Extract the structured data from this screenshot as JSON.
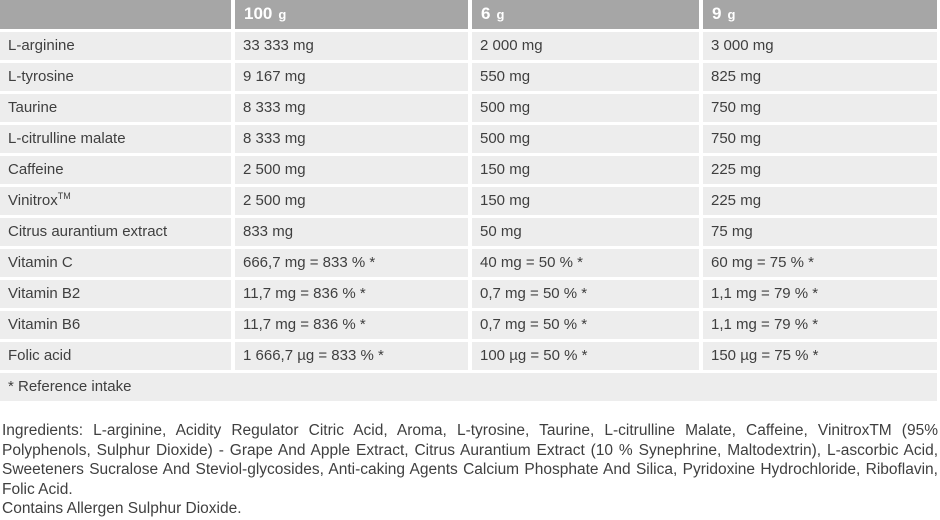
{
  "colors": {
    "header_bg": "#a6a6a6",
    "header_text": "#ffffff",
    "row_bg": "#ededed",
    "body_text": "#3f3f3f",
    "divider": "#ffffff"
  },
  "table": {
    "headers": [
      {
        "amount": "",
        "unit": ""
      },
      {
        "amount": "100",
        "unit": "g"
      },
      {
        "amount": "6",
        "unit": "g"
      },
      {
        "amount": "9",
        "unit": "g"
      }
    ],
    "rows": [
      {
        "name": "L-arginine",
        "sup": "",
        "per_100g": "33 333 mg",
        "per_6g": "2 000 mg",
        "per_9g": "3 000 mg"
      },
      {
        "name": "L-tyrosine",
        "sup": "",
        "per_100g": "9 167 mg",
        "per_6g": "550 mg",
        "per_9g": "825 mg"
      },
      {
        "name": "Taurine",
        "sup": "",
        "per_100g": "8 333 mg",
        "per_6g": "500 mg",
        "per_9g": "750 mg"
      },
      {
        "name": "L-citrulline malate",
        "sup": "",
        "per_100g": "8 333 mg",
        "per_6g": "500 mg",
        "per_9g": "750 mg"
      },
      {
        "name": "Caffeine",
        "sup": "",
        "per_100g": "2 500 mg",
        "per_6g": "150 mg",
        "per_9g": "225 mg"
      },
      {
        "name": "Vinitrox",
        "sup": "TM",
        "per_100g": "2 500 mg",
        "per_6g": "150 mg",
        "per_9g": "225 mg"
      },
      {
        "name": "Citrus aurantium extract",
        "sup": "",
        "per_100g": "833 mg",
        "per_6g": "50 mg",
        "per_9g": "75 mg"
      },
      {
        "name": "Vitamin C",
        "sup": "",
        "per_100g": "666,7 mg = 833 % *",
        "per_6g": "40 mg = 50 % *",
        "per_9g": "60 mg = 75 % *"
      },
      {
        "name": "Vitamin B2",
        "sup": "",
        "per_100g": "11,7 mg = 836 % *",
        "per_6g": "0,7 mg = 50 % *",
        "per_9g": "1,1 mg = 79 % *"
      },
      {
        "name": "Vitamin B6",
        "sup": "",
        "per_100g": "11,7 mg = 836 % *",
        "per_6g": "0,7 mg = 50 % *",
        "per_9g": "1,1 mg = 79 % *"
      },
      {
        "name": "Folic acid",
        "sup": "",
        "per_100g": "1 666,7 µg = 833 % *",
        "per_6g": "100 µg = 50 % *",
        "per_9g": "150 µg = 75 % *"
      }
    ],
    "footnote": "* Reference intake"
  },
  "ingredients": {
    "text": "Ingredients: L-arginine, Acidity Regulator Citric Acid, Aroma, L-tyrosine, Taurine, L-citrulline Malate, Caffeine, VinitroxTM (95% Polyphenols, Sulphur Dioxide) - Grape And Apple Extract, Citrus Aurantium Extract (10 % Synephrine, Maltodextrin), L-ascorbic Acid, Sweeteners Sucralose And Steviol-glycosides, Anti-caking Agents Calcium Phosphate And Silica, Pyridoxine Hydrochloride, Riboflavin, Folic Acid.",
    "allergen": "Contains Allergen Sulphur Dioxide."
  }
}
